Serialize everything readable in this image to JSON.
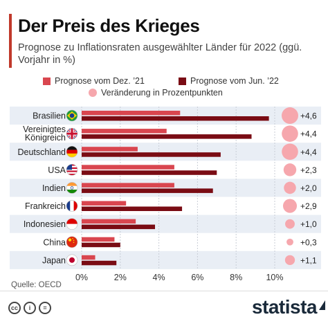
{
  "header": {
    "title": "Der Preis des Krieges",
    "subtitle": "Prognose zu Inflationsraten ausgewählter Länder für 2022 (ggü. Vorjahr in %)"
  },
  "legend": {
    "dec": "Prognose vom Dez. ’21",
    "jun": "Prognose vom Jun. ’22",
    "change": "Veränderung in Prozentpunkten"
  },
  "source": "Quelle: OECD",
  "brand": "statista",
  "colors": {
    "dec": "#d9464f",
    "jun": "#7a0c14",
    "change": "#f6a7ad",
    "stripe": "#e9eef5"
  },
  "chart_data": {
    "type": "bar",
    "orientation": "horizontal",
    "categories": [
      "Brasilien",
      "Vereinigtes Königreich",
      "Deutschland",
      "USA",
      "Indien",
      "Frankreich",
      "Indonesien",
      "China",
      "Japan"
    ],
    "category_labels": [
      [
        "Brasilien"
      ],
      [
        "Vereinigtes",
        "Königreich"
      ],
      [
        "Deutschland"
      ],
      [
        "USA"
      ],
      [
        "Indien"
      ],
      [
        "Frankreich"
      ],
      [
        "Indonesien"
      ],
      [
        "China"
      ],
      [
        "Japan"
      ]
    ],
    "flags": [
      "flag-brazil",
      "flag-uk",
      "flag-germany",
      "flag-usa",
      "flag-india",
      "flag-france",
      "flag-indonesia",
      "flag-china",
      "flag-japan"
    ],
    "series": [
      {
        "name": "Prognose vom Dez. ’21",
        "values": [
          5.1,
          4.4,
          2.9,
          4.8,
          4.8,
          2.3,
          2.8,
          1.7,
          0.7
        ]
      },
      {
        "name": "Prognose vom Jun. ’22",
        "values": [
          9.7,
          8.8,
          7.2,
          7.0,
          6.8,
          5.2,
          3.8,
          2.0,
          1.8
        ]
      },
      {
        "name": "Veränderung in Prozentpunkten",
        "values": [
          4.6,
          4.4,
          4.4,
          2.3,
          2.0,
          2.9,
          1.0,
          0.3,
          1.1
        ]
      }
    ],
    "change_labels": [
      "+4,6",
      "+4,4",
      "+4,4",
      "+2,3",
      "+2,0",
      "+2,9",
      "+1,0",
      "+0,3",
      "+1,1"
    ],
    "x_ticks": [
      "0%",
      "2%",
      "4%",
      "6%",
      "8%",
      "10%"
    ],
    "xlim": [
      0,
      10
    ],
    "grid": true
  }
}
